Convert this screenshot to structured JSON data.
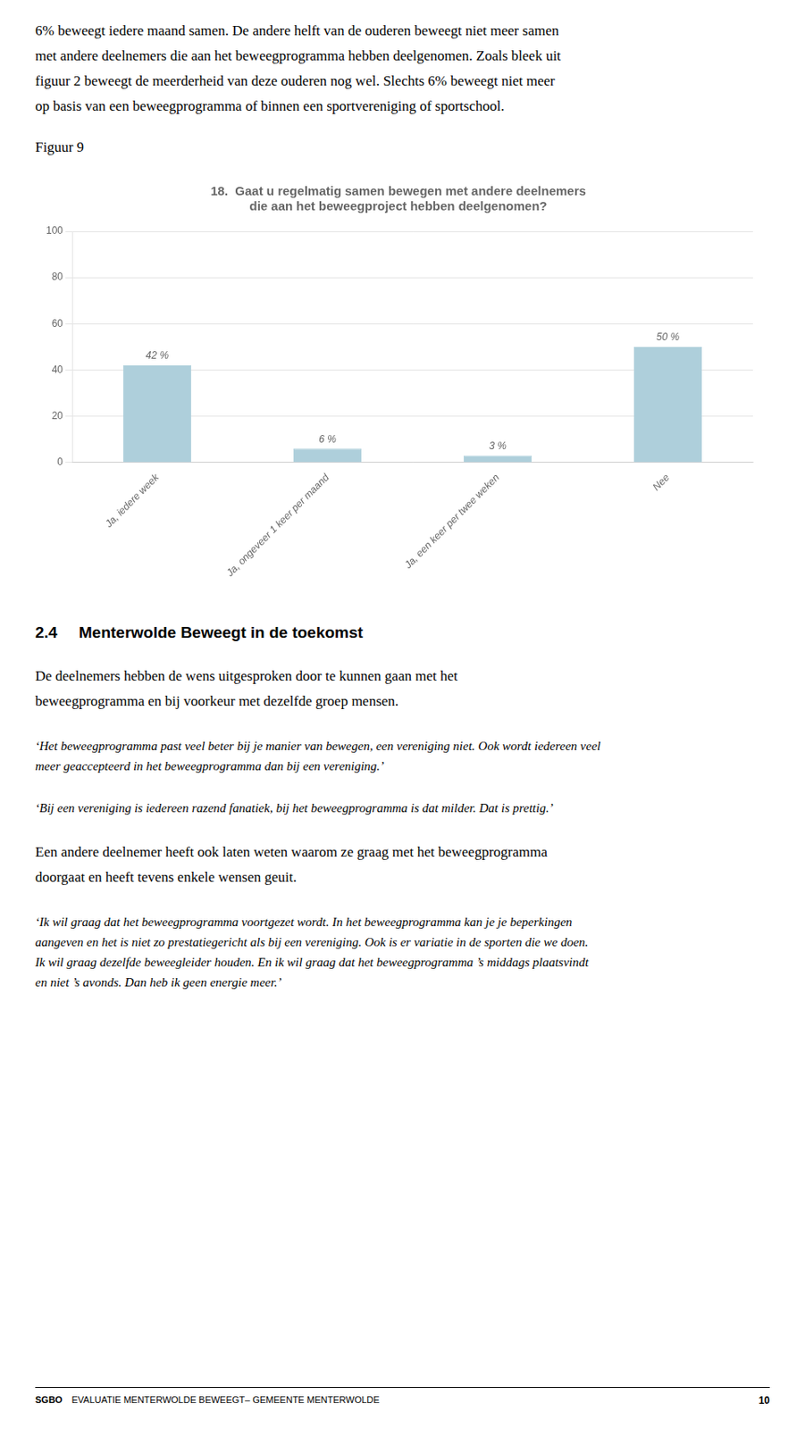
{
  "page": {
    "text_before": [
      "6% beweegt iedere maand samen. De andere helft van de ouderen beweegt niet meer samen",
      "met andere deelnemers die aan het beweegprogramma hebben deelgenomen. Zoals bleek uit",
      "figuur 2 beweegt de meerderheid van deze ouderen nog wel. Slechts 6% beweegt niet meer",
      "op basis van een beweegprogramma of binnen een sportvereniging of sportschool."
    ],
    "figure_label": "Figuur 9",
    "section_number": "2.4",
    "section_title": "Menterwolde Beweegt in de toekomst",
    "body_text_1": [
      "De deelnemers hebben de wens uitgesproken door te kunnen gaan met het",
      "beweegprogramma en bij voorkeur met dezelfde groep mensen."
    ],
    "quote_1": [
      "‘Het beweegprogramma past veel beter bij je manier van bewegen, een vereniging niet. Ook wordt iedereen veel",
      "meer geaccepteerd in het beweegprogramma dan bij een vereniging.’"
    ],
    "quote_2": [
      "‘Bij een vereniging is iedereen razend fanatiek, bij het beweegprogramma is dat milder. Dat is prettig.’"
    ],
    "body_text_2": [
      "Een andere deelnemer heeft ook laten weten waarom ze graag met het beweegprogramma",
      "doorgaat en heeft tevens enkele wensen geuit."
    ],
    "quote_3": [
      "‘Ik wil graag dat het beweegprogramma voortgezet wordt. In het beweegprogramma kan je je beperkingen",
      "aangeven en het is niet zo prestatiegericht als bij een vereniging. Ook is er variatie in de sporten die we doen.",
      "Ik wil graag dezelfde beweegleider houden. En ik wil graag dat het beweegprogramma ’s middags plaatsvindt",
      "en niet ’s avonds. Dan heb ik geen energie meer.’"
    ],
    "footer_left_bold": "SGBO",
    "footer_left": "EVALUATIE MENTERWOLDE BEWEEGT– GEMEENTE MENTERWOLDE",
    "footer_right": "10"
  },
  "chart_data": {
    "type": "bar",
    "title": [
      "18.  Gaat u regelmatig samen bewegen met andere deelnemers",
      "die aan het beweegproject hebben deelgenomen?"
    ],
    "categories": [
      "Ja, iedere week",
      "Ja, ongeveer 1 keer per maand",
      "Ja, een keer per twee weken",
      "Nee"
    ],
    "values": [
      42,
      6,
      3,
      50
    ],
    "value_labels": [
      "42 %",
      "6 %",
      "3 %",
      "50 %"
    ],
    "data_labels": true,
    "color": "#aecfdb",
    "ylim": [
      0,
      100
    ],
    "yticks": [
      0,
      20,
      40,
      60,
      80,
      100
    ],
    "grid": true
  }
}
